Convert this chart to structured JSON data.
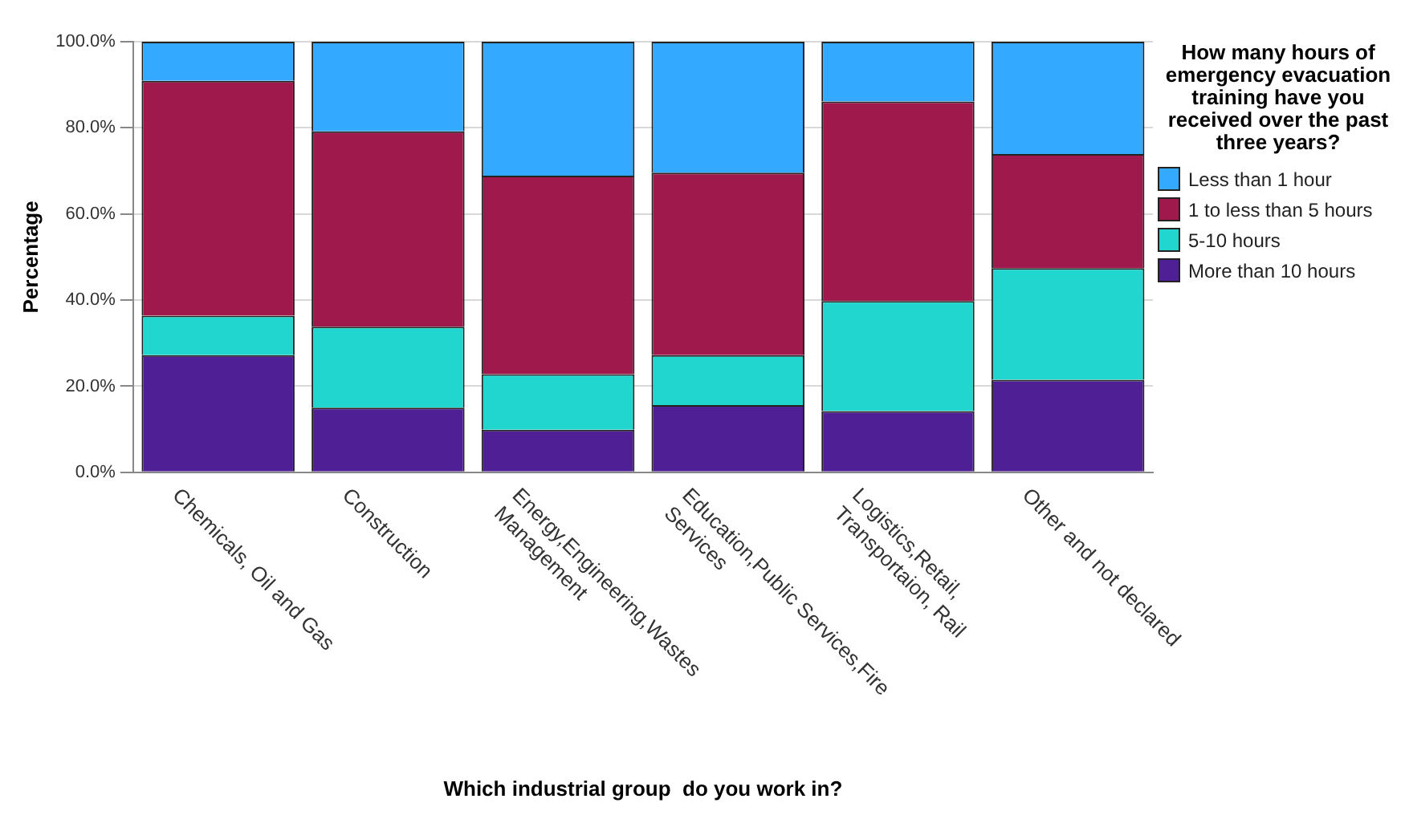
{
  "chart_data": {
    "type": "bar",
    "stacked": true,
    "xlabel": "Which industrial group  do you work in?",
    "ylabel": "Percentage",
    "legend_title": "How many hours of emergency evacuation training have you received over the past three years?",
    "categories": [
      "Chemicals, Oil and Gas",
      "Construction",
      "Energy,Engineering,Wastes Management",
      "Education,Public Services,Fire Services",
      "Logistics,Retail, Transportaion, Rail",
      "Other and not declared"
    ],
    "series": [
      {
        "name": "More than 10 hours",
        "color": "#4f1f96",
        "values": [
          27.2,
          15.0,
          9.9,
          15.6,
          14.2,
          21.5
        ]
      },
      {
        "name": "5-10 hours",
        "color": "#22d6d0",
        "values": [
          9.2,
          18.8,
          12.9,
          11.6,
          25.6,
          25.9
        ]
      },
      {
        "name": "1 to less than 5 hours",
        "color": "#a0194c",
        "values": [
          54.5,
          45.4,
          46.1,
          42.4,
          46.3,
          26.5
        ]
      },
      {
        "name": "Less than 1 hour",
        "color": "#33aaff",
        "values": [
          9.1,
          20.8,
          31.1,
          30.4,
          13.9,
          26.1
        ]
      }
    ],
    "ylim": [
      0,
      100
    ],
    "yticks": [
      {
        "value": 0,
        "label": "0.0%"
      },
      {
        "value": 20,
        "label": "20.0%"
      },
      {
        "value": 40,
        "label": "40.0%"
      },
      {
        "value": 60,
        "label": "60.0%"
      },
      {
        "value": 80,
        "label": "80.0%"
      },
      {
        "value": 100,
        "label": "100.0%"
      }
    ],
    "grid": "y",
    "legend": "right"
  }
}
